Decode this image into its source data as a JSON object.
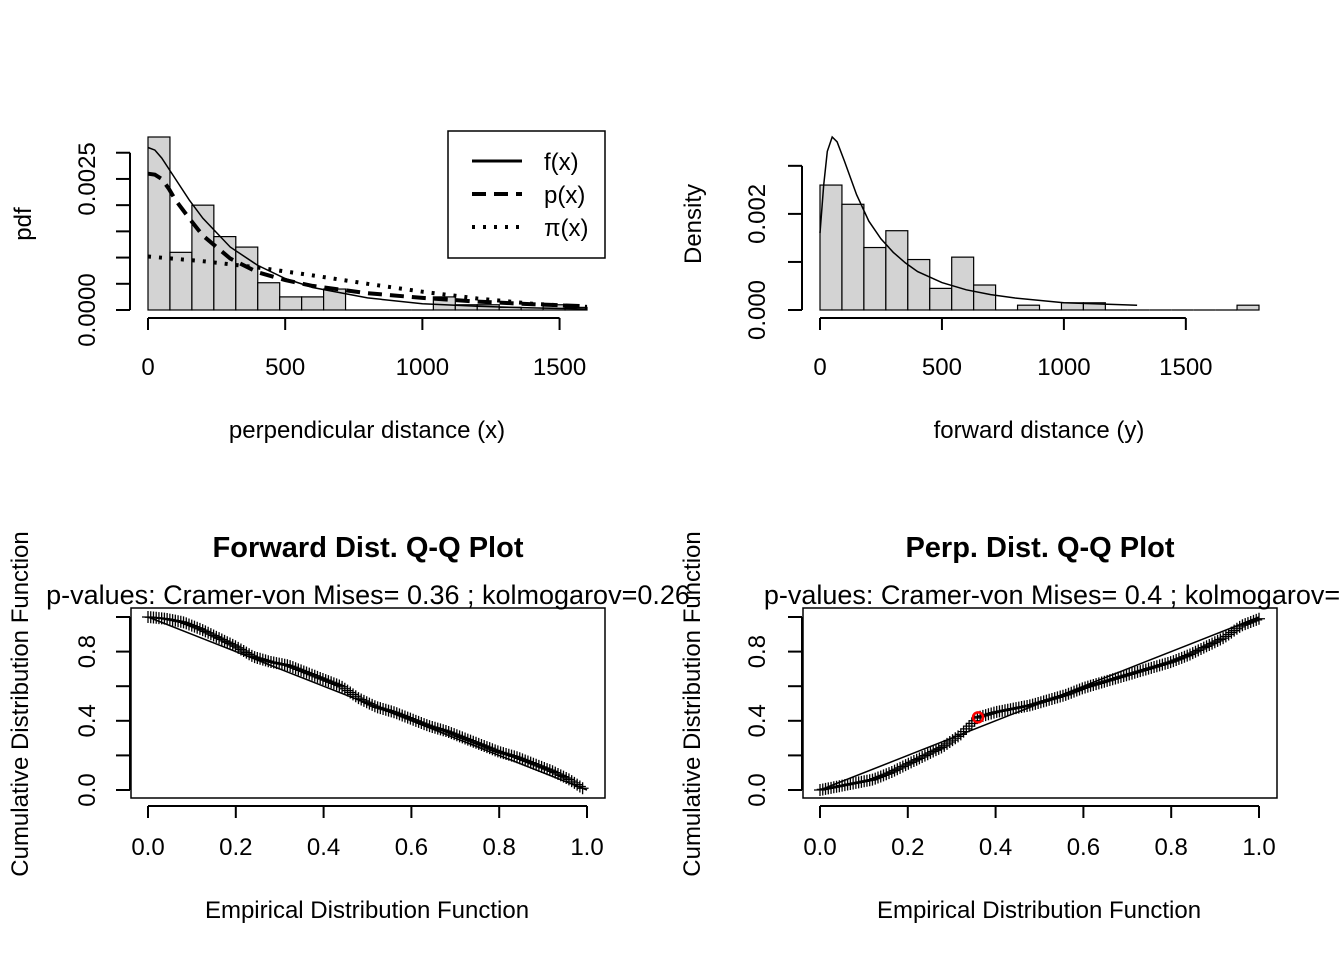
{
  "chart_data": [
    {
      "type": "bar",
      "panel": "top-left",
      "xlabel": "perpendicular distance (x)",
      "ylabel": "pdf",
      "xlim": [
        0,
        1600
      ],
      "ylim": [
        0,
        0.0033
      ],
      "x_ticks": [
        "0",
        "500",
        "1000",
        "1500"
      ],
      "y_ticks": [
        "0.0000",
        "0.0025"
      ],
      "histogram": {
        "bin_width": 80,
        "bins_start": [
          0,
          80,
          160,
          240,
          320,
          400,
          480,
          560,
          640,
          720,
          800,
          880,
          960,
          1040,
          1120,
          1200,
          1280,
          1360,
          1440,
          1520
        ],
        "density": [
          0.0033,
          0.0011,
          0.002,
          0.0014,
          0.0012,
          0.00052,
          0.00025,
          0.00025,
          0.0004,
          0,
          0,
          0,
          0,
          0.00025,
          0.0001,
          0.0001,
          5e-05,
          0,
          0.0001,
          5e-05
        ]
      },
      "legend": {
        "position": "top-right",
        "entries": [
          "f(x)",
          "p(x)",
          "π(x)"
        ]
      },
      "series": [
        {
          "name": "f(x)",
          "style": "solid",
          "x": [
            0,
            25,
            50,
            100,
            150,
            200,
            300,
            400,
            500,
            600,
            800,
            1000,
            1200,
            1400,
            1600
          ],
          "y": [
            0.0031,
            0.00305,
            0.0029,
            0.0025,
            0.0021,
            0.00175,
            0.0012,
            0.00085,
            0.0006,
            0.00043,
            0.00023,
            0.00012,
            7e-05,
            4e-05,
            2e-05
          ]
        },
        {
          "name": "p(x)",
          "style": "dashed",
          "x": [
            0,
            25,
            50,
            75,
            100,
            150,
            200,
            300,
            400,
            500,
            600,
            800,
            1000,
            1200,
            1400,
            1600
          ],
          "y": [
            0.0026,
            0.00258,
            0.0025,
            0.00232,
            0.0021,
            0.00175,
            0.00142,
            0.00098,
            0.00072,
            0.00057,
            0.00046,
            0.00032,
            0.00023,
            0.00016,
            0.00011,
            7e-05
          ]
        },
        {
          "name": "π(x)",
          "style": "dotted",
          "x": [
            0,
            200,
            400,
            600,
            800,
            1000,
            1200,
            1400,
            1600
          ],
          "y": [
            0.00102,
            0.00093,
            0.00081,
            0.00066,
            0.0005,
            0.00035,
            0.00022,
            0.00012,
            6e-05
          ]
        }
      ]
    },
    {
      "type": "bar",
      "panel": "top-right",
      "xlabel": "forward distance (y)",
      "ylabel": "Density",
      "xlim": [
        0,
        1800
      ],
      "ylim": [
        0,
        0.0036
      ],
      "x_ticks": [
        "0",
        "500",
        "1000",
        "1500"
      ],
      "y_ticks": [
        "0.000",
        "0.002"
      ],
      "histogram": {
        "bin_width": 90,
        "bins_start": [
          0,
          90,
          180,
          270,
          360,
          450,
          540,
          630,
          720,
          810,
          900,
          990,
          1080,
          1170,
          1260,
          1350,
          1440,
          1530,
          1620,
          1710
        ],
        "density": [
          0.0026,
          0.0022,
          0.0013,
          0.00165,
          0.00105,
          0.00045,
          0.0011,
          0.00052,
          0,
          0.0001,
          0,
          0.00015,
          0.00015,
          0,
          0,
          0,
          0,
          0,
          0,
          0.0001
        ]
      },
      "series": [
        {
          "name": "",
          "style": "solid",
          "x": [
            0,
            15,
            30,
            50,
            70,
            100,
            150,
            200,
            250,
            300,
            350,
            400,
            500,
            600,
            700,
            800,
            1000,
            1300
          ],
          "y": [
            0.0016,
            0.0026,
            0.0033,
            0.0036,
            0.0035,
            0.0031,
            0.0024,
            0.00185,
            0.00148,
            0.0012,
            0.00098,
            0.0008,
            0.00057,
            0.00042,
            0.00032,
            0.00025,
            0.00015,
            0.0001
          ]
        }
      ]
    },
    {
      "type": "scatter",
      "panel": "bottom-left",
      "title": "Forward Dist. Q-Q Plot",
      "subtitle": "p-values: Cramer-von Mises= 0.36  ; kolmogarov=0.26",
      "xlabel": "Empirical Distribution Function",
      "ylabel": "Cumulative Distribution Function",
      "xlim": [
        0,
        1
      ],
      "ylim": [
        0,
        1
      ],
      "x_ticks": [
        "0.0",
        "0.2",
        "0.4",
        "0.6",
        "0.8",
        "1.0"
      ],
      "y_ticks": [
        "0.0",
        "0.4",
        "0.8"
      ],
      "reference_line": {
        "x": [
          0,
          1
        ],
        "y": [
          1,
          0
        ]
      },
      "series": [
        {
          "name": "",
          "marker": "+",
          "x": [
            0.0,
            0.04,
            0.08,
            0.12,
            0.16,
            0.2,
            0.24,
            0.28,
            0.32,
            0.36,
            0.4,
            0.44,
            0.48,
            0.52,
            0.56,
            0.6,
            0.64,
            0.68,
            0.72,
            0.76,
            0.8,
            0.84,
            0.88,
            0.92,
            0.96,
            0.99
          ],
          "y": [
            1.0,
            0.99,
            0.97,
            0.93,
            0.88,
            0.83,
            0.77,
            0.74,
            0.72,
            0.68,
            0.64,
            0.6,
            0.53,
            0.48,
            0.45,
            0.41,
            0.37,
            0.34,
            0.3,
            0.26,
            0.22,
            0.19,
            0.15,
            0.11,
            0.06,
            0.01
          ]
        }
      ]
    },
    {
      "type": "scatter",
      "panel": "bottom-right",
      "title": "Perp. Dist. Q-Q Plot",
      "subtitle": "p-values: Cramer-von Mises= 0.4  ; kolmogarov=",
      "xlabel": "Empirical Distribution Function",
      "ylabel": "Cumulative Distribution Function",
      "xlim": [
        0,
        1
      ],
      "ylim": [
        0,
        1
      ],
      "x_ticks": [
        "0.0",
        "0.2",
        "0.4",
        "0.6",
        "0.8",
        "1.0"
      ],
      "y_ticks": [
        "0.0",
        "0.4",
        "0.8"
      ],
      "reference_line": {
        "x": [
          0,
          1
        ],
        "y": [
          0,
          1
        ]
      },
      "highlight_point": {
        "x": 0.36,
        "y": 0.42,
        "color": "#ff0000"
      },
      "series": [
        {
          "name": "",
          "marker": "+",
          "x": [
            0.0,
            0.04,
            0.08,
            0.12,
            0.16,
            0.2,
            0.24,
            0.28,
            0.32,
            0.36,
            0.4,
            0.44,
            0.48,
            0.52,
            0.56,
            0.6,
            0.64,
            0.68,
            0.72,
            0.76,
            0.8,
            0.84,
            0.88,
            0.92,
            0.96,
            1.0
          ],
          "y": [
            0.0,
            0.02,
            0.04,
            0.06,
            0.1,
            0.15,
            0.2,
            0.25,
            0.32,
            0.42,
            0.45,
            0.47,
            0.49,
            0.52,
            0.55,
            0.59,
            0.62,
            0.65,
            0.68,
            0.71,
            0.74,
            0.78,
            0.83,
            0.88,
            0.95,
            0.99
          ]
        }
      ]
    }
  ]
}
